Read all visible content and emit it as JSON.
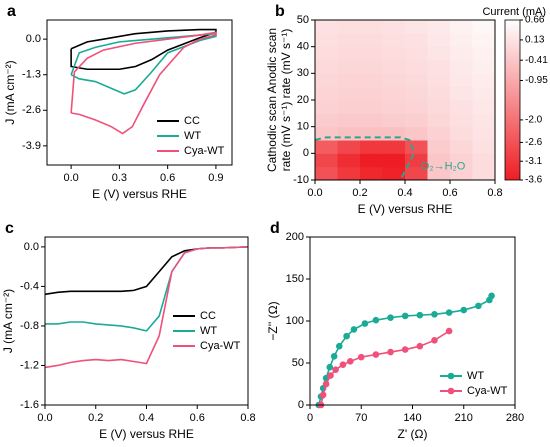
{
  "chart_data": [
    {
      "type": "line",
      "panel": "a",
      "xlabel": "E (V) versus RHE",
      "ylabel": "J (mA cm⁻²)",
      "xlim": [
        -0.15,
        1.0
      ],
      "xticks": [
        {
          "value": 0,
          "label": "0.0"
        },
        0.3,
        0.6,
        0.9
      ],
      "ylim": [
        -4.6,
        0.7
      ],
      "yticks": [
        {
          "value": 0,
          "label": "0.0"
        },
        -1.3,
        -2.6,
        -3.9
      ],
      "legend": "lower right",
      "series": [
        {
          "name": "CC",
          "color": "#000000",
          "x": [
            0,
            0.1,
            0.2,
            0.4,
            0.6,
            0.8,
            0.9,
            0.9,
            0.8,
            0.6,
            0.5,
            0.4,
            0.3,
            0.1,
            0,
            0
          ],
          "values": [
            -0.35,
            -0.1,
            0.0,
            0.2,
            0.3,
            0.35,
            0.35,
            0.25,
            0.05,
            -0.4,
            -0.75,
            -1.0,
            -1.1,
            -1.1,
            -1.0,
            -0.35
          ]
        },
        {
          "name": "WT",
          "color": "#1aab96",
          "x": [
            0,
            0.05,
            0.15,
            0.3,
            0.5,
            0.7,
            0.9,
            0.9,
            0.8,
            0.6,
            0.5,
            0.4,
            0.33,
            0.25,
            0.15,
            0.05,
            0
          ],
          "values": [
            -1.3,
            -0.5,
            -0.3,
            -0.1,
            0.0,
            0.1,
            0.2,
            0.1,
            -0.05,
            -0.5,
            -1.2,
            -1.85,
            -2.0,
            -1.8,
            -1.55,
            -1.45,
            -1.3
          ]
        },
        {
          "name": "Cya-WT",
          "color": "#f0507a",
          "x": [
            0,
            0.02,
            0.1,
            0.2,
            0.4,
            0.6,
            0.8,
            0.9,
            0.9,
            0.8,
            0.7,
            0.55,
            0.45,
            0.38,
            0.32,
            0.25,
            0.15,
            0.05,
            0
          ],
          "values": [
            -2.7,
            -1.2,
            -0.7,
            -0.4,
            -0.15,
            0.0,
            0.15,
            0.25,
            0.15,
            0.0,
            -0.3,
            -1.3,
            -2.4,
            -3.2,
            -3.45,
            -3.2,
            -2.95,
            -2.75,
            -2.7
          ]
        }
      ]
    },
    {
      "type": "heatmap",
      "panel": "b",
      "xlabel": "E (V) versus RHE",
      "ylabel": [
        "Cathodic scan Anodic scan",
        "rate (mV s⁻¹)  rate (mV s⁻¹)"
      ],
      "colorbar_label": "Current (mA)",
      "annotation": "O₂→H₂O",
      "xlim": [
        0,
        0.8
      ],
      "xticks": [
        {
          "value": 0,
          "label": "0.0"
        },
        0.2,
        0.4,
        0.6,
        0.8
      ],
      "ylim": [
        -10,
        50
      ],
      "yticks": [
        -10,
        0,
        10,
        20,
        30,
        40,
        50
      ],
      "zlim": [
        -3.6,
        0.66
      ],
      "colorscale": [
        "#ee1d23",
        "#ffffff"
      ],
      "zticks": [
        0.66,
        0.13,
        -0.41,
        -0.95,
        {
          "value": -2,
          "label": "-2.0"
        },
        -2.6,
        -3.1,
        -3.6
      ],
      "x": [
        0.05,
        0.15,
        0.25,
        0.35,
        0.45,
        0.55,
        0.65,
        0.75
      ],
      "y": [
        -7.5,
        -2.5,
        2.5,
        7.5,
        12.5,
        17.5,
        22.5,
        27.5,
        32.5,
        37.5,
        42.5,
        47.5
      ],
      "z": [
        [
          -2.6,
          -3.1,
          -3.4,
          -3.5,
          -2.8,
          -0.41,
          -0.2,
          0.0
        ],
        [
          -2.8,
          -3.3,
          -3.6,
          -3.6,
          -3.0,
          -0.41,
          -0.2,
          0.0
        ],
        [
          -2.4,
          -2.8,
          -3.1,
          -3.1,
          -2.6,
          -0.3,
          -0.1,
          0.1
        ],
        [
          -0.41,
          -0.5,
          -0.5,
          -0.5,
          -0.41,
          -0.2,
          0.0,
          0.13
        ],
        [
          -0.3,
          -0.35,
          -0.35,
          -0.3,
          -0.25,
          -0.1,
          0.05,
          0.15
        ],
        [
          -0.2,
          -0.25,
          -0.25,
          -0.2,
          -0.15,
          -0.05,
          0.1,
          0.2
        ],
        [
          -0.15,
          -0.2,
          -0.2,
          -0.15,
          -0.1,
          0.0,
          0.15,
          0.25
        ],
        [
          -0.1,
          -0.15,
          -0.15,
          -0.1,
          -0.05,
          0.05,
          0.2,
          0.3
        ],
        [
          -0.05,
          -0.1,
          -0.1,
          -0.05,
          0.0,
          0.1,
          0.25,
          0.35
        ],
        [
          0.0,
          -0.05,
          -0.05,
          0.0,
          0.05,
          0.15,
          0.3,
          0.4
        ],
        [
          0.05,
          0.0,
          0.0,
          0.05,
          0.1,
          0.2,
          0.35,
          0.45
        ],
        [
          0.1,
          0.05,
          0.05,
          0.1,
          0.15,
          0.25,
          0.4,
          0.5
        ]
      ],
      "boundary": {
        "color": "#2aa68f",
        "x": [
          0,
          0.05,
          0.38,
          0.42,
          0.44,
          0.41,
          0.38
        ],
        "y": [
          5,
          6,
          6,
          5,
          0,
          -5,
          -10
        ]
      }
    },
    {
      "type": "line",
      "panel": "c",
      "xlabel": "E (V) versus RHE",
      "ylabel": "J (mA cm⁻²)",
      "xlim": [
        0,
        0.8
      ],
      "xticks": [
        {
          "value": 0,
          "label": "0.0"
        },
        0.2,
        0.4,
        0.6,
        0.8
      ],
      "ylim": [
        -1.6,
        0.1
      ],
      "yticks": [
        {
          "value": 0,
          "label": "0.0"
        },
        -0.4,
        -0.8,
        -1.2,
        -1.6
      ],
      "legend": "center right",
      "x": [
        0,
        0.05,
        0.1,
        0.15,
        0.2,
        0.25,
        0.3,
        0.35,
        0.4,
        0.45,
        0.5,
        0.55,
        0.6,
        0.65,
        0.7,
        0.75,
        0.8
      ],
      "series": [
        {
          "name": "CC",
          "color": "#000000",
          "values": [
            -0.48,
            -0.46,
            -0.45,
            -0.45,
            -0.45,
            -0.45,
            -0.45,
            -0.44,
            -0.4,
            -0.25,
            -0.1,
            -0.04,
            -0.02,
            -0.01,
            -0.01,
            -0.005,
            0.0
          ]
        },
        {
          "name": "WT",
          "color": "#1aab96",
          "values": [
            -0.78,
            -0.78,
            -0.76,
            -0.76,
            -0.78,
            -0.79,
            -0.8,
            -0.82,
            -0.85,
            -0.7,
            -0.25,
            -0.06,
            -0.02,
            -0.01,
            -0.01,
            -0.005,
            0.0
          ]
        },
        {
          "name": "Cya-WT",
          "color": "#f0507a",
          "values": [
            -1.22,
            -1.2,
            -1.17,
            -1.15,
            -1.14,
            -1.15,
            -1.14,
            -1.16,
            -1.18,
            -0.9,
            -0.25,
            -0.06,
            -0.02,
            -0.01,
            -0.01,
            -0.005,
            0.0
          ]
        }
      ]
    },
    {
      "type": "line",
      "panel": "d",
      "xlabel": "Z' (Ω)",
      "ylabel": "−Z'' (Ω)",
      "markers": true,
      "xlim": [
        0,
        280
      ],
      "xticks": [
        0,
        70,
        140,
        210,
        280
      ],
      "ylim": [
        0,
        200
      ],
      "yticks": [
        0,
        50,
        100,
        150,
        200
      ],
      "legend": "lower right",
      "series": [
        {
          "name": "WT",
          "color": "#1aab96",
          "x": [
            12,
            15,
            18,
            22,
            27,
            33,
            40,
            50,
            60,
            75,
            90,
            110,
            130,
            150,
            170,
            190,
            210,
            230,
            245,
            248
          ],
          "values": [
            0,
            10,
            20,
            32,
            45,
            58,
            70,
            82,
            90,
            97,
            101,
            104,
            106,
            107,
            108,
            110,
            113,
            118,
            125,
            130
          ]
        },
        {
          "name": "Cya-WT",
          "color": "#f0507a",
          "x": [
            15,
            18,
            22,
            28,
            35,
            45,
            55,
            70,
            90,
            110,
            130,
            150,
            170,
            190
          ],
          "values": [
            0,
            12,
            25,
            35,
            42,
            48,
            52,
            57,
            60,
            63,
            66,
            70,
            77,
            88
          ]
        }
      ]
    }
  ]
}
